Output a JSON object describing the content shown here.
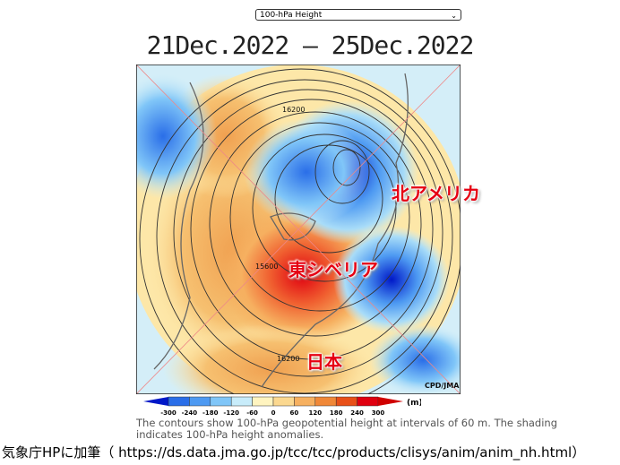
{
  "selector": {
    "value": "100-hPa Height",
    "icon": "chevron-down-icon"
  },
  "title": "21Dec.2022 – 25Dec.2022",
  "map": {
    "contour_labels": [
      "16200",
      "15600",
      "16200"
    ],
    "credit": "CPD/JMA",
    "annotations": [
      "北アメリカ",
      "東シベリア",
      "日本"
    ],
    "annotation_color": "#e60012"
  },
  "legend": {
    "ticks": [
      "-300",
      "-240",
      "-180",
      "-120",
      "-60",
      "0",
      "60",
      "120",
      "180",
      "240",
      "300"
    ],
    "unit": "(m)",
    "colors": [
      "#0018c8",
      "#2a6ee8",
      "#4e9af2",
      "#80c6f8",
      "#c8ecfa",
      "#fff4c0",
      "#fbd890",
      "#f6b060",
      "#f08838",
      "#e85018",
      "#e00010",
      "#d00000"
    ]
  },
  "caption": "The contours show 100-hPa geopotential height at intervals of 60 m. The shading indicates 100-hPa height anomalies.",
  "source": "気象庁HPに加筆（ https://ds.data.jma.go.jp/tcc/tcc/products/clisys/anim/anim_nh.html）"
}
